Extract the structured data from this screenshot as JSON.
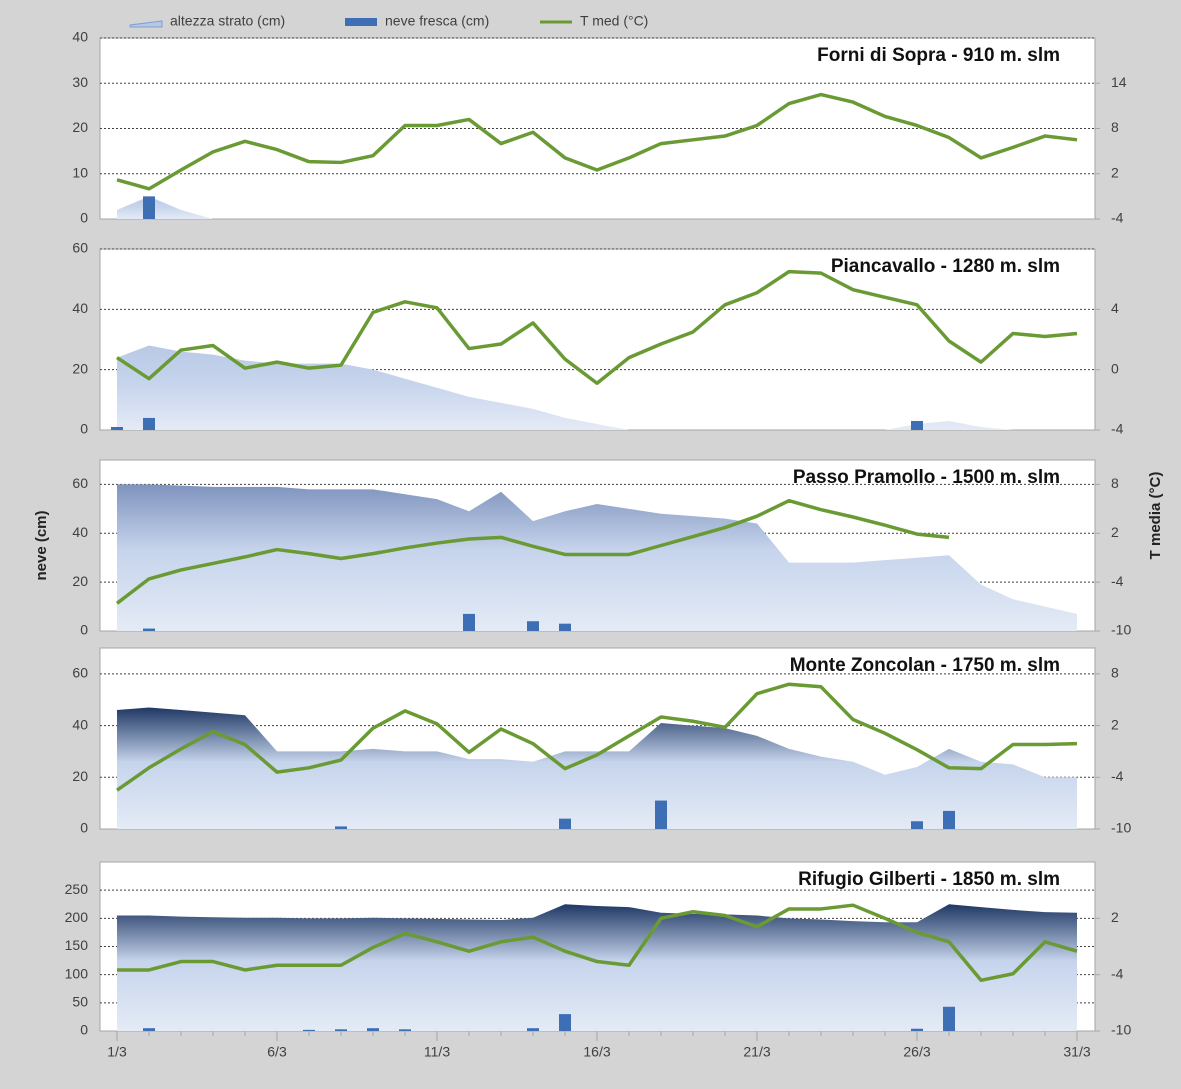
{
  "chart_data": [
    {
      "type": "combo",
      "title": "Forni di Sopra - 910 m. slm",
      "ylim": [
        0,
        40
      ],
      "yticks": [
        0,
        10,
        20,
        30,
        40
      ],
      "y2lim": [
        -4,
        20
      ],
      "y2ticks": [
        -4,
        2,
        8,
        14
      ],
      "grid": true,
      "series": [
        {
          "name": "altezza strato (cm)",
          "type": "area",
          "color": "#b4c7e7",
          "values": [
            2,
            5,
            2,
            0,
            0,
            0,
            0,
            0,
            0,
            0,
            0,
            0,
            0,
            0,
            0,
            0,
            0,
            0,
            0,
            0,
            0,
            0,
            0,
            0,
            0,
            0,
            0,
            0,
            0,
            0,
            0
          ]
        },
        {
          "name": "neve fresca (cm)",
          "type": "bar",
          "color": "#3e6fb5",
          "values": [
            0,
            5,
            0,
            0,
            0,
            0,
            0,
            0,
            0,
            0,
            0,
            0,
            0,
            0,
            0,
            0,
            0,
            0,
            0,
            0,
            0,
            0,
            0,
            0,
            0,
            0,
            0,
            0,
            0,
            0,
            0
          ]
        },
        {
          "name": "T med (°C)",
          "type": "line",
          "axis": "y2",
          "color": "#6a9a34",
          "values": [
            1.2,
            0,
            2.5,
            4.9,
            6.3,
            5.2,
            3.6,
            3.5,
            4.4,
            8.4,
            8.4,
            9.2,
            6,
            7.5,
            4.1,
            2.5,
            4.1,
            6,
            6.5,
            7,
            8.4,
            11.3,
            12.5,
            11.5,
            9.6,
            8.4,
            6.8,
            4.1,
            5.5,
            7,
            6.5
          ]
        }
      ]
    },
    {
      "type": "combo",
      "title": "Piancavallo - 1280 m. slm",
      "ylim": [
        0,
        60
      ],
      "yticks": [
        0,
        20,
        40,
        60
      ],
      "y2lim": [
        -4,
        8
      ],
      "y2ticks": [
        -4,
        0,
        4
      ],
      "grid": true,
      "series": [
        {
          "type": "area",
          "color": "#b4c7e7",
          "values": [
            24,
            28,
            26,
            25,
            23,
            22,
            22,
            22,
            20,
            17,
            14,
            11,
            9,
            7,
            4,
            2,
            0,
            0,
            0,
            0,
            0,
            0,
            0,
            0,
            0,
            2,
            3,
            1,
            0,
            0,
            0
          ]
        },
        {
          "type": "bar",
          "color": "#3e6fb5",
          "values": [
            1,
            4,
            0,
            0,
            0,
            0,
            0,
            0,
            0,
            0,
            0,
            0,
            0,
            0,
            0,
            0,
            0,
            0,
            0,
            0,
            0,
            0,
            0,
            0,
            0,
            3,
            0,
            0,
            0,
            0,
            0
          ]
        },
        {
          "type": "line",
          "axis": "y2",
          "color": "#6a9a34",
          "values": [
            0.8,
            -0.6,
            1.3,
            1.6,
            0.1,
            0.5,
            0.1,
            0.3,
            3.8,
            4.5,
            4.1,
            1.4,
            1.7,
            3.1,
            0.7,
            -0.9,
            0.8,
            1.7,
            2.5,
            4.3,
            5.1,
            6.5,
            6.4,
            5.3,
            4.8,
            4.3,
            1.9,
            0.5,
            2.4,
            2.2,
            2.4
          ]
        }
      ]
    },
    {
      "type": "combo",
      "title": "Passo Pramollo - 1500 m. slm",
      "y_label": "neve (cm)",
      "y2_label": "T media (°C)",
      "ylim": [
        0,
        70
      ],
      "yticks": [
        0,
        20,
        40,
        60
      ],
      "y2lim": [
        -10,
        11
      ],
      "y2ticks": [
        -10,
        -4,
        2,
        8
      ],
      "grid": true,
      "series": [
        {
          "type": "area",
          "color": "#b4c7e7",
          "values": [
            60,
            60,
            59.5,
            59,
            59,
            59,
            58,
            58,
            58,
            56,
            54,
            49,
            57,
            45,
            49,
            52,
            50,
            48,
            47,
            46,
            44,
            28,
            28,
            28,
            29,
            30,
            31,
            19,
            13,
            10,
            7
          ]
        },
        {
          "type": "bar",
          "color": "#3e6fb5",
          "values": [
            0,
            1,
            0,
            0,
            0,
            0,
            0,
            0,
            0,
            0,
            0,
            7,
            0,
            4,
            3,
            0,
            0,
            0,
            0,
            0,
            0,
            0,
            0,
            0,
            0,
            0,
            0,
            0,
            0,
            0,
            0
          ]
        },
        {
          "type": "line",
          "axis": "y2",
          "color": "#6a9a34",
          "values": [
            -6.6,
            -3.6,
            -2.5,
            -1.7,
            -0.9,
            0,
            -0.5,
            -1.1,
            -0.5,
            0.2,
            0.8,
            1.3,
            1.5,
            0.4,
            -0.6,
            -0.6,
            -0.6,
            0.5,
            1.6,
            2.7,
            4.1,
            6,
            4.9,
            4,
            3,
            1.9,
            1.5,
            null,
            null,
            null,
            null
          ]
        }
      ]
    },
    {
      "type": "combo",
      "title": "Monte Zoncolan - 1750 m. slm",
      "ylim": [
        0,
        70
      ],
      "yticks": [
        0,
        20,
        40,
        60
      ],
      "y2lim": [
        -10,
        11
      ],
      "y2ticks": [
        -10,
        -4,
        2,
        8
      ],
      "grid": true,
      "series": [
        {
          "type": "area",
          "color": "#b4c7e7",
          "values": [
            46,
            47,
            46,
            45,
            44,
            30,
            30,
            30,
            31,
            30,
            30,
            27,
            27,
            26,
            30,
            30,
            30,
            41,
            40,
            39,
            36,
            31,
            28,
            26,
            21,
            24,
            31,
            26,
            25,
            20,
            20
          ]
        },
        {
          "type": "bar",
          "color": "#3e6fb5",
          "values": [
            0,
            0,
            0,
            0,
            0,
            0,
            0,
            1,
            0,
            0,
            0,
            0,
            0,
            0,
            4,
            0,
            0,
            11,
            0,
            0,
            0,
            0,
            0,
            0,
            0,
            3,
            7,
            0,
            0,
            0,
            0
          ]
        },
        {
          "type": "line",
          "axis": "y2",
          "color": "#6a9a34",
          "values": [
            -5.5,
            -2.9,
            -0.7,
            1.3,
            -0.2,
            -3.4,
            -2.9,
            -2,
            1.7,
            3.7,
            2.2,
            -1.1,
            1.6,
            -0.1,
            -3,
            -1.4,
            0.8,
            3,
            2.5,
            1.8,
            5.7,
            6.8,
            6.5,
            2.7,
            1.1,
            -0.8,
            -2.9,
            -3,
            -0.2,
            -0.2,
            -0.1
          ]
        }
      ]
    },
    {
      "type": "combo",
      "title": "Rifugio Gilberti - 1850 m. slm",
      "ylim": [
        0,
        300
      ],
      "yticks": [
        0,
        50,
        100,
        150,
        200,
        250
      ],
      "y2lim": [
        -10,
        8
      ],
      "y2ticks": [
        -10,
        -4,
        2
      ],
      "grid": true,
      "categories": [
        "1/3",
        null,
        null,
        null,
        null,
        "6/3",
        null,
        null,
        null,
        null,
        "11/3",
        null,
        null,
        null,
        null,
        "16/3",
        null,
        null,
        null,
        null,
        "21/3",
        null,
        null,
        null,
        null,
        "26/3",
        null,
        null,
        null,
        null,
        "31/3"
      ],
      "series": [
        {
          "type": "area",
          "color": "#b4c7e7",
          "values": [
            205,
            205,
            203,
            202,
            201,
            201,
            200,
            200,
            201,
            200,
            199,
            198,
            197,
            201,
            225,
            222,
            220,
            210,
            208,
            207,
            205,
            200,
            198,
            195,
            193,
            193,
            225,
            220,
            215,
            211,
            210
          ]
        },
        {
          "type": "bar",
          "color": "#3e6fb5",
          "values": [
            0,
            5,
            0,
            0,
            0,
            0,
            2,
            3,
            5,
            3,
            0,
            0,
            0,
            5,
            30,
            0,
            0,
            0,
            0,
            0,
            0,
            0,
            0,
            0,
            0,
            4,
            43,
            0,
            0,
            0,
            0
          ]
        },
        {
          "type": "line",
          "axis": "y2",
          "color": "#6a9a34",
          "values": [
            -3.5,
            -3.5,
            -2.6,
            -2.6,
            -3.5,
            -3,
            -3,
            -3,
            -1.1,
            0.4,
            -0.5,
            -1.5,
            -0.5,
            0,
            -1.5,
            -2.6,
            -3,
            2,
            2.7,
            2.3,
            1.1,
            3,
            3,
            3.4,
            2,
            0.5,
            -0.5,
            -4.6,
            -3.9,
            -0.5,
            -1.5
          ]
        }
      ]
    }
  ]
}
